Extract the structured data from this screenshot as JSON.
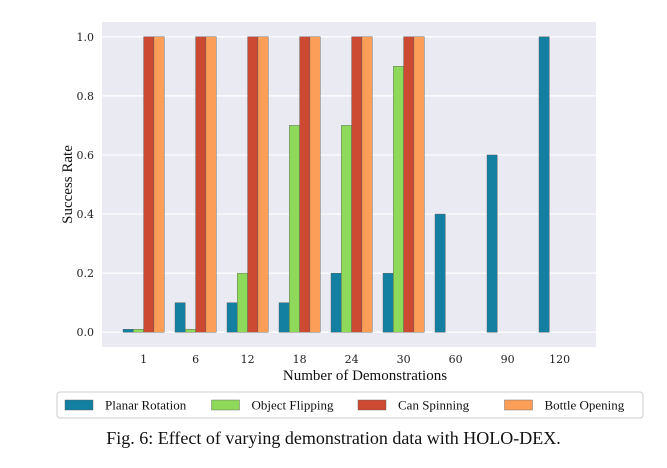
{
  "chart_data": {
    "type": "bar",
    "title": "",
    "xlabel": "Number of Demonstrations",
    "ylabel": "Success Rate",
    "ylim": [
      0,
      1.0
    ],
    "yticks": [
      "0.0",
      "0.2",
      "0.4",
      "0.6",
      "0.8",
      "1.0"
    ],
    "categories": [
      "1",
      "6",
      "12",
      "18",
      "24",
      "30",
      "60",
      "90",
      "120"
    ],
    "series": [
      {
        "name": "Planar Rotation",
        "color": "#1380a1",
        "values": [
          0.01,
          0.1,
          0.1,
          0.1,
          0.2,
          0.2,
          0.4,
          0.6,
          1.0
        ]
      },
      {
        "name": "Object Flipping",
        "color": "#8ed85a",
        "values": [
          0.01,
          0.01,
          0.2,
          0.7,
          0.7,
          0.9,
          null,
          null,
          null
        ]
      },
      {
        "name": "Can Spinning",
        "color": "#cc4a32",
        "values": [
          1.0,
          1.0,
          1.0,
          1.0,
          1.0,
          1.0,
          null,
          null,
          null
        ]
      },
      {
        "name": "Bottle Opening",
        "color": "#fc9e58",
        "values": [
          1.0,
          1.0,
          1.0,
          1.0,
          1.0,
          1.0,
          null,
          null,
          null
        ]
      }
    ],
    "legend_position": "bottom",
    "grid": true
  },
  "caption": {
    "prefix": "Fig. 6: Effect of varying demonstration data with ",
    "name_h": "H",
    "name_olo": "OLO",
    "name_dash": "-D",
    "name_ex": "EX",
    "suffix": "."
  }
}
